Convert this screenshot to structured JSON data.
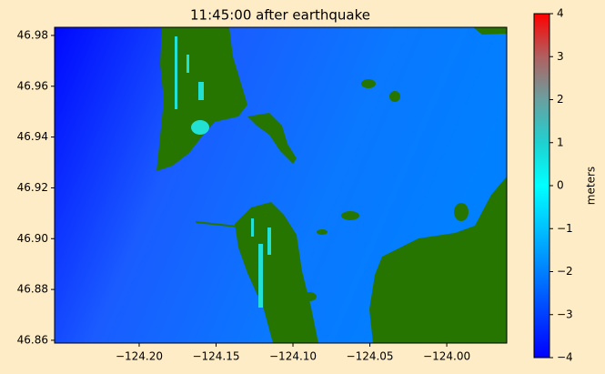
{
  "chart_data": {
    "type": "heatmap",
    "title": "11:45:00 after earthquake",
    "xlim": [
      -124.255,
      -123.961
    ],
    "ylim": [
      46.8589,
      46.9832
    ],
    "xticks": [
      {
        "value": -124.2,
        "label": "−124.20"
      },
      {
        "value": -124.15,
        "label": "−124.15"
      },
      {
        "value": -124.1,
        "label": "−124.10"
      },
      {
        "value": -124.05,
        "label": "−124.05"
      },
      {
        "value": -124.0,
        "label": "−124.00"
      }
    ],
    "yticks": [
      46.86,
      46.88,
      {
        "value": 46.9,
        "label": "46.90"
      },
      46.92,
      46.94,
      46.96,
      46.98
    ],
    "grid": false,
    "colorbar": {
      "label": "meters",
      "clim": [
        -4,
        4
      ],
      "ticks": [
        {
          "value": -4,
          "label": "−4"
        },
        {
          "value": -3,
          "label": "−3"
        },
        {
          "value": -2,
          "label": "−2"
        },
        {
          "value": -1,
          "label": "−1"
        },
        0,
        1,
        2,
        3,
        4
      ],
      "colors": [
        "#0000ff",
        "#0040ff",
        "#0080ff",
        "#00c0ff",
        "#00ffff",
        "#20d0d0",
        "#6aa0a0",
        "#b06060",
        "#ff0000"
      ]
    }
  }
}
